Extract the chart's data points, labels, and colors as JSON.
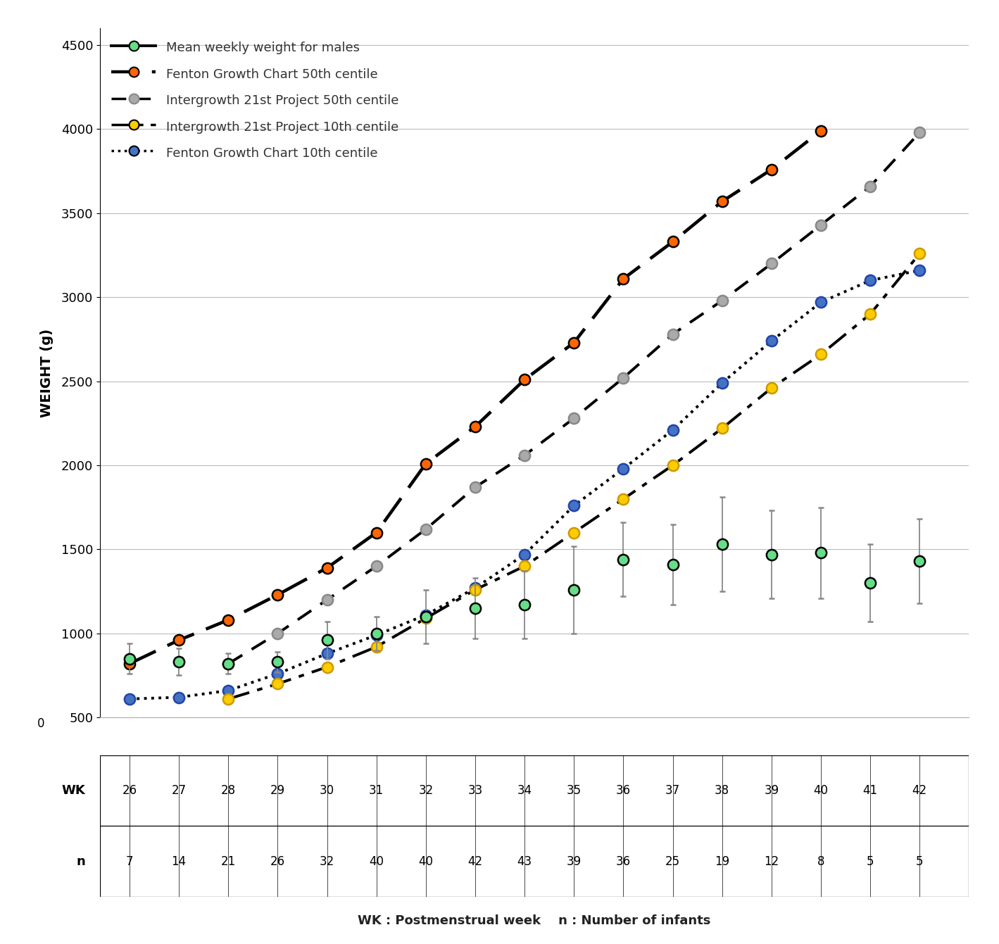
{
  "weeks": [
    26,
    27,
    28,
    29,
    30,
    31,
    32,
    33,
    34,
    35,
    36,
    37,
    38,
    39,
    40,
    41,
    42
  ],
  "n_values": [
    7,
    14,
    21,
    26,
    32,
    40,
    40,
    42,
    43,
    39,
    36,
    25,
    19,
    12,
    8,
    5,
    5
  ],
  "mean_weight": [
    850,
    830,
    820,
    830,
    960,
    1000,
    1100,
    1150,
    1170,
    1260,
    1440,
    1410,
    1530,
    1470,
    1480,
    1300,
    1430
  ],
  "mean_weight_err_low": [
    90,
    80,
    60,
    60,
    110,
    100,
    160,
    180,
    200,
    260,
    220,
    240,
    280,
    260,
    270,
    230,
    250
  ],
  "mean_weight_err_high": [
    90,
    80,
    60,
    60,
    110,
    100,
    160,
    180,
    200,
    260,
    220,
    240,
    280,
    260,
    270,
    230,
    250
  ],
  "fenton_50_weeks": [
    26,
    27,
    28,
    29,
    30,
    31,
    32,
    33,
    34,
    35,
    36,
    37,
    38,
    39,
    40
  ],
  "fenton_50_vals": [
    820,
    960,
    1080,
    1230,
    1390,
    1600,
    2010,
    2230,
    2510,
    2730,
    3110,
    3330,
    3570,
    3760,
    3990
  ],
  "intergrowth_50_weeks": [
    28,
    29,
    30,
    31,
    32,
    33,
    34,
    35,
    36,
    37,
    38,
    39,
    40,
    41,
    42
  ],
  "intergrowth_50_vals": [
    820,
    1000,
    1200,
    1400,
    1620,
    1870,
    2060,
    2280,
    2520,
    2780,
    2980,
    3200,
    3430,
    3660,
    3980
  ],
  "intergrowth_10_weeks": [
    28,
    29,
    30,
    31,
    32,
    33,
    34,
    35,
    36,
    37,
    38,
    39,
    40,
    41,
    42
  ],
  "intergrowth_10_vals": [
    610,
    700,
    800,
    920,
    1090,
    1260,
    1400,
    1600,
    1800,
    2000,
    2220,
    2460,
    2660,
    2900,
    3260
  ],
  "fenton_10_weeks": [
    26,
    27,
    28,
    29,
    30,
    31,
    32,
    33,
    34,
    35,
    36,
    37,
    38,
    39,
    40,
    41,
    42
  ],
  "fenton_10_vals": [
    610,
    620,
    660,
    760,
    880,
    990,
    1110,
    1270,
    1470,
    1760,
    1980,
    2210,
    2490,
    2740,
    2970,
    3100,
    3160
  ],
  "ylabel": "WEIGHT (g)",
  "xlabel": "WK : Postmenstrual week    n : Number of infants",
  "background_color": "#ffffff",
  "grid_color": "#bbbbbb",
  "legend_mean": "Mean weekly weight for males",
  "legend_fenton50": "Fenton Growth Chart 50th centile",
  "legend_intergrowth50": "Intergrowth 21st Project 50th centile",
  "legend_intergrowth10": "Intergrowth 21st Project 10th centile",
  "legend_fenton10": "Fenton Growth Chart 10th centile",
  "color_line": "#000000",
  "color_mean_marker": "#66dd88",
  "color_fenton50_marker": "#ff6600",
  "color_intergrowth50_marker": "#aaaaaa",
  "color_intergrowth10_marker": "#ffcc00",
  "color_fenton10_marker": "#4472c4",
  "color_errbar": "#888888"
}
